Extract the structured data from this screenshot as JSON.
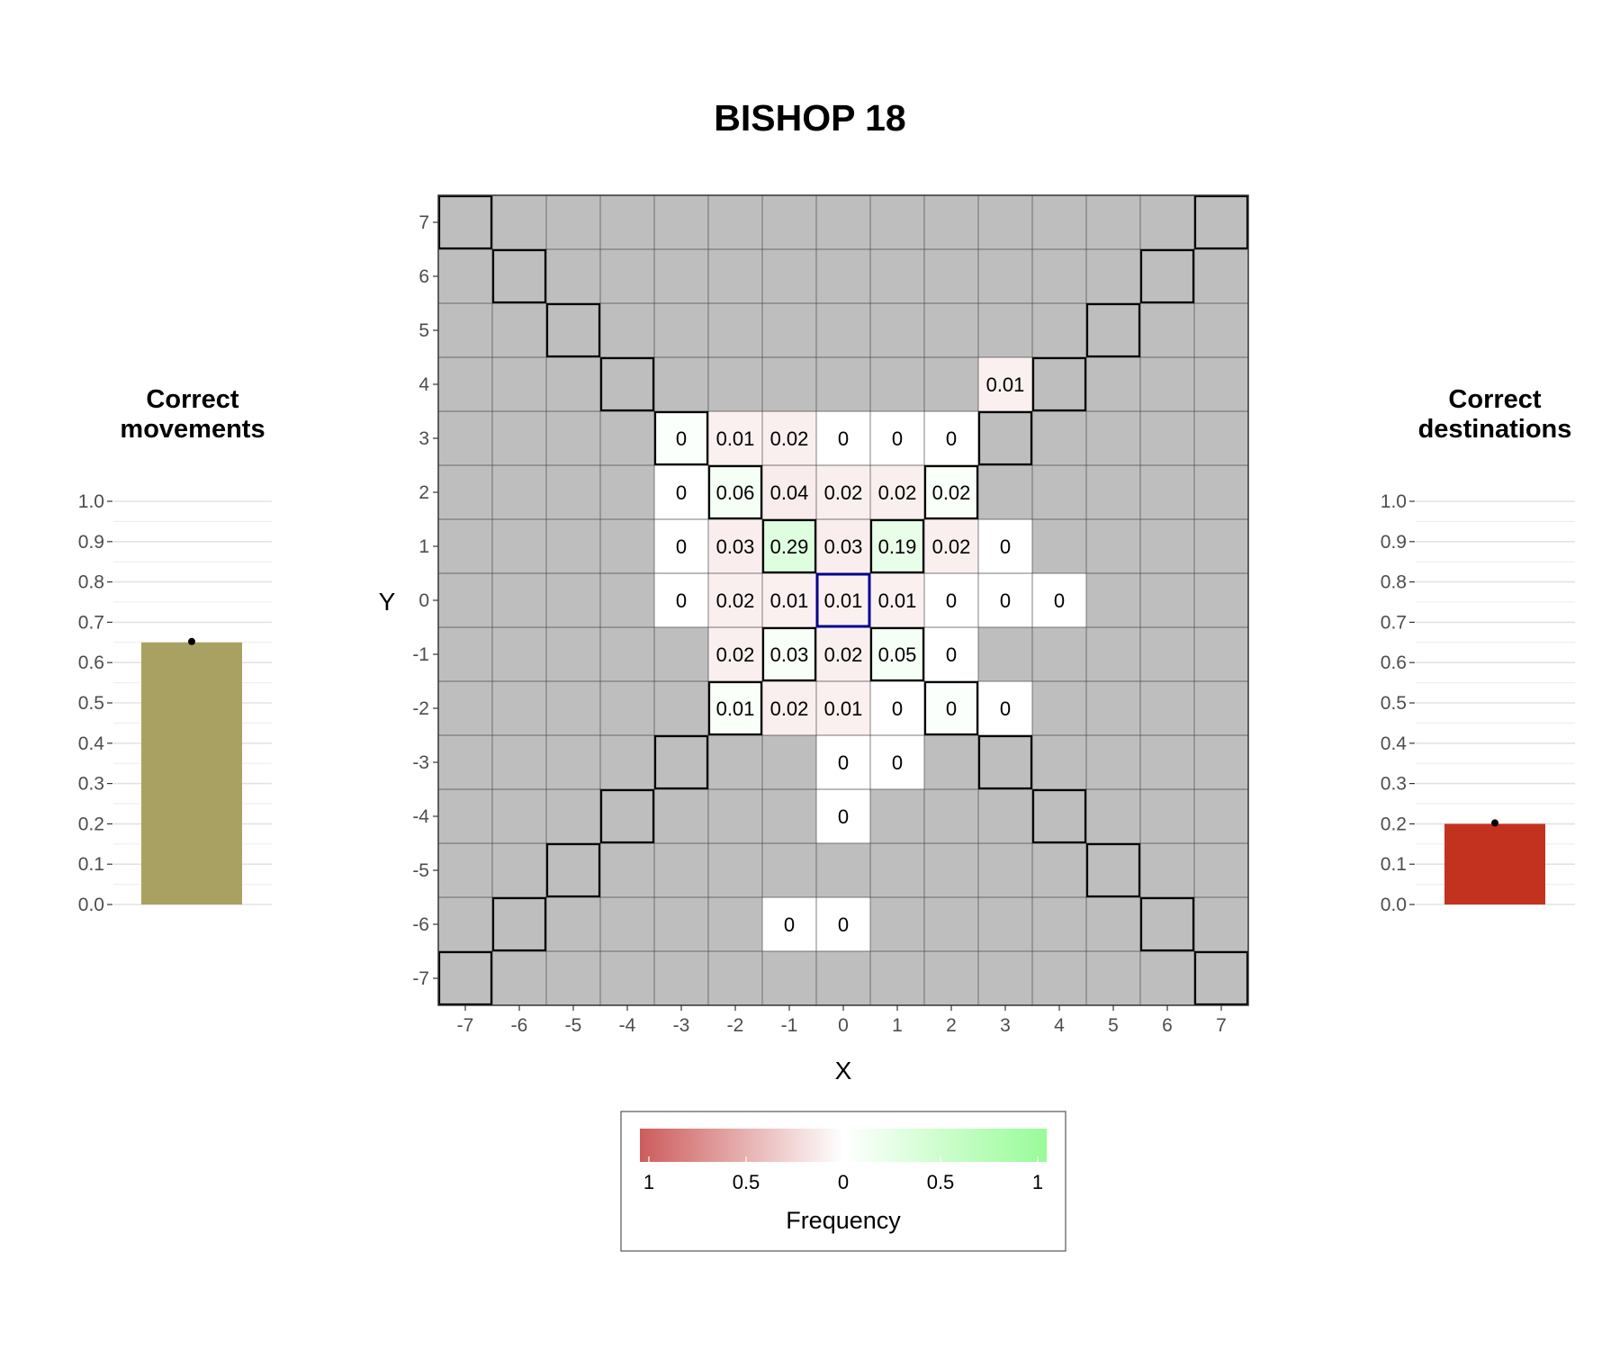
{
  "title": "BISHOP 18",
  "colors": {
    "board_bg": "#bebebe",
    "neg_full": "#cd5c5c",
    "zero": "#ffffff",
    "pos_full": "#98fb98",
    "bar_left": "#a9a161",
    "bar_right": "#c3321f",
    "origin_outline": "#00008b",
    "move_outline": "#000000"
  },
  "chart_data": [
    {
      "type": "heatmap",
      "title": "BISHOP 18",
      "xlabel": "X",
      "ylabel": "Y",
      "x_ticks": [
        "-7",
        "-6",
        "-5",
        "-4",
        "-3",
        "-2",
        "-1",
        "0",
        "1",
        "2",
        "3",
        "4",
        "5",
        "6",
        "7"
      ],
      "y_ticks": [
        "7",
        "6",
        "5",
        "4",
        "3",
        "2",
        "1",
        "0",
        "-1",
        "-2",
        "-3",
        "-4",
        "-5",
        "-6",
        "-7"
      ],
      "xlim": [
        -7,
        7
      ],
      "ylim": [
        -7,
        7
      ],
      "origin": [
        0,
        0
      ],
      "bishop_moves_outlined": "diagonals from origin",
      "cells": [
        {
          "x": 3,
          "y": 4,
          "label": "0.01",
          "sign": -1
        },
        {
          "x": -3,
          "y": 3,
          "label": "0",
          "sign": 1
        },
        {
          "x": -2,
          "y": 3,
          "label": "0.01",
          "sign": -1
        },
        {
          "x": -1,
          "y": 3,
          "label": "0.02",
          "sign": -1
        },
        {
          "x": 0,
          "y": 3,
          "label": "0",
          "sign": -1
        },
        {
          "x": 1,
          "y": 3,
          "label": "0",
          "sign": -1
        },
        {
          "x": 2,
          "y": 3,
          "label": "0",
          "sign": -1
        },
        {
          "x": -3,
          "y": 2,
          "label": "0",
          "sign": -1
        },
        {
          "x": -2,
          "y": 2,
          "label": "0.06",
          "sign": 1
        },
        {
          "x": -1,
          "y": 2,
          "label": "0.04",
          "sign": -1
        },
        {
          "x": 0,
          "y": 2,
          "label": "0.02",
          "sign": -1
        },
        {
          "x": 1,
          "y": 2,
          "label": "0.02",
          "sign": -1
        },
        {
          "x": 2,
          "y": 2,
          "label": "0.02",
          "sign": 1
        },
        {
          "x": -3,
          "y": 1,
          "label": "0",
          "sign": -1
        },
        {
          "x": -2,
          "y": 1,
          "label": "0.03",
          "sign": -1
        },
        {
          "x": -1,
          "y": 1,
          "label": "0.29",
          "sign": 1
        },
        {
          "x": 0,
          "y": 1,
          "label": "0.03",
          "sign": -1
        },
        {
          "x": 1,
          "y": 1,
          "label": "0.19",
          "sign": 1
        },
        {
          "x": 2,
          "y": 1,
          "label": "0.02",
          "sign": -1
        },
        {
          "x": 3,
          "y": 1,
          "label": "0",
          "sign": -1
        },
        {
          "x": -3,
          "y": 0,
          "label": "0",
          "sign": -1
        },
        {
          "x": -2,
          "y": 0,
          "label": "0.02",
          "sign": -1
        },
        {
          "x": -1,
          "y": 0,
          "label": "0.01",
          "sign": -1
        },
        {
          "x": 0,
          "y": 0,
          "label": "0.01",
          "sign": -1
        },
        {
          "x": 1,
          "y": 0,
          "label": "0.01",
          "sign": -1
        },
        {
          "x": 2,
          "y": 0,
          "label": "0",
          "sign": -1
        },
        {
          "x": 3,
          "y": 0,
          "label": "0",
          "sign": -1
        },
        {
          "x": 4,
          "y": 0,
          "label": "0",
          "sign": -1
        },
        {
          "x": -2,
          "y": -1,
          "label": "0.02",
          "sign": -1
        },
        {
          "x": -1,
          "y": -1,
          "label": "0.03",
          "sign": 1
        },
        {
          "x": 0,
          "y": -1,
          "label": "0.02",
          "sign": -1
        },
        {
          "x": 1,
          "y": -1,
          "label": "0.05",
          "sign": 1
        },
        {
          "x": 2,
          "y": -1,
          "label": "0",
          "sign": -1
        },
        {
          "x": -2,
          "y": -2,
          "label": "0.01",
          "sign": 1
        },
        {
          "x": -1,
          "y": -2,
          "label": "0.02",
          "sign": -1
        },
        {
          "x": 0,
          "y": -2,
          "label": "0.01",
          "sign": -1
        },
        {
          "x": 1,
          "y": -2,
          "label": "0",
          "sign": -1
        },
        {
          "x": 2,
          "y": -2,
          "label": "0",
          "sign": 1
        },
        {
          "x": 3,
          "y": -2,
          "label": "0",
          "sign": -1
        },
        {
          "x": 0,
          "y": -3,
          "label": "0",
          "sign": -1
        },
        {
          "x": 1,
          "y": -3,
          "label": "0",
          "sign": -1
        },
        {
          "x": 0,
          "y": -4,
          "label": "0",
          "sign": -1
        },
        {
          "x": -1,
          "y": -6,
          "label": "0",
          "sign": -1
        },
        {
          "x": 0,
          "y": -6,
          "label": "0",
          "sign": -1
        }
      ],
      "legend": {
        "title": "Frequency",
        "tick_labels": [
          "1",
          "0.5",
          "0",
          "0.5",
          "1"
        ],
        "range": [
          -1,
          1
        ]
      }
    },
    {
      "type": "bar",
      "title_lines": [
        "Correct",
        "movements"
      ],
      "value": 0.65,
      "ylim": [
        0,
        1
      ],
      "y_ticks": [
        "0.0",
        "0.1",
        "0.2",
        "0.3",
        "0.4",
        "0.5",
        "0.6",
        "0.7",
        "0.8",
        "0.9",
        "1.0"
      ]
    },
    {
      "type": "bar",
      "title_lines": [
        "Correct",
        "destinations"
      ],
      "value": 0.2,
      "ylim": [
        0,
        1
      ],
      "y_ticks": [
        "0.0",
        "0.1",
        "0.2",
        "0.3",
        "0.4",
        "0.5",
        "0.6",
        "0.7",
        "0.8",
        "0.9",
        "1.0"
      ]
    }
  ]
}
